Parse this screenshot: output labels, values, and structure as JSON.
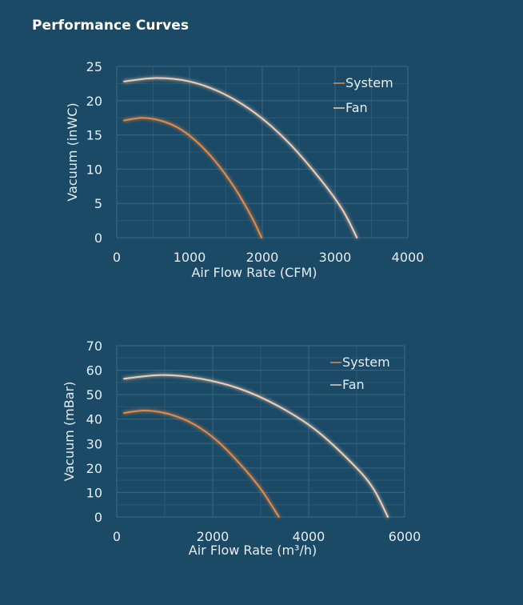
{
  "page": {
    "title": "Performance Curves"
  },
  "chart_data": [
    {
      "type": "line",
      "xlabel": "Air Flow Rate (CFM)",
      "ylabel": "Vacuum (inWC)",
      "xlim": [
        0,
        4000
      ],
      "ylim": [
        0,
        25
      ],
      "xticks": [
        0,
        1000,
        2000,
        3000,
        4000
      ],
      "yticks": [
        0,
        5,
        10,
        15,
        20,
        25
      ],
      "grid": true,
      "legend_position": "top-right",
      "series": [
        {
          "name": "System",
          "color": "#e3894a",
          "x": [
            100,
            350,
            600,
            850,
            1100,
            1350,
            1600,
            1850,
            1990
          ],
          "y": [
            17.1,
            17.5,
            17.1,
            16.0,
            14.0,
            11.2,
            7.6,
            3.1,
            0
          ]
        },
        {
          "name": "Fan",
          "color": "#f1cdb3",
          "x": [
            100,
            550,
            1000,
            1450,
            1900,
            2350,
            2800,
            3100,
            3300
          ],
          "y": [
            22.8,
            23.3,
            22.8,
            21.1,
            18.2,
            14.0,
            8.5,
            4.1,
            0
          ]
        }
      ]
    },
    {
      "type": "line",
      "xlabel": "Air Flow Rate (m³/h)",
      "ylabel": "Vacuum (mBar)",
      "xlim": [
        0,
        6000
      ],
      "ylim": [
        0,
        70
      ],
      "xticks": [
        0,
        2000,
        4000,
        6000
      ],
      "yticks": [
        0,
        10,
        20,
        30,
        40,
        50,
        60,
        70
      ],
      "grid": true,
      "legend_position": "top-right",
      "series": [
        {
          "name": "System",
          "color": "#e3894a",
          "x": [
            150,
            600,
            1100,
            1600,
            2100,
            2600,
            3000,
            3380
          ],
          "y": [
            42.5,
            43.5,
            42.0,
            38.0,
            31.0,
            21.0,
            11.5,
            0
          ]
        },
        {
          "name": "Fan",
          "color": "#f1cdb3",
          "x": [
            150,
            950,
            1750,
            2550,
            3350,
            4150,
            4950,
            5350,
            5650
          ],
          "y": [
            56.5,
            58.0,
            56.5,
            52.5,
            45.5,
            35.5,
            21.0,
            11.5,
            0
          ]
        }
      ]
    }
  ]
}
